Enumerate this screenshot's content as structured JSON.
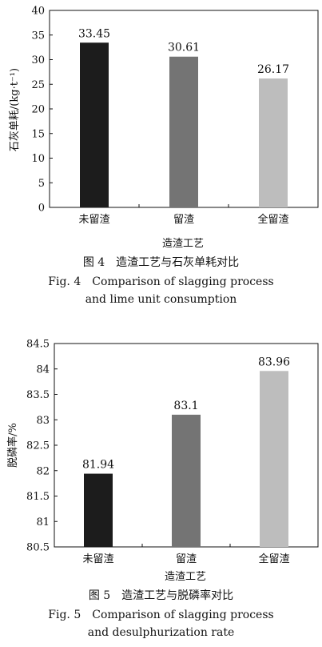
{
  "chart_data": [
    {
      "type": "bar",
      "categories": [
        "未留渣",
        "留渣",
        "全留渣"
      ],
      "values": [
        33.45,
        30.61,
        26.17
      ],
      "data_labels": [
        "33.45",
        "30.61",
        "26.17"
      ],
      "colors": [
        "#1c1c1c",
        "#747474",
        "#bdbdbd"
      ],
      "ylim": [
        0,
        40
      ],
      "yticks": [
        "0",
        "5",
        "10",
        "15",
        "20",
        "25",
        "30",
        "35",
        "40"
      ],
      "xlabel": "造渣工艺",
      "ylabel": "石灰单耗/(kg·t⁻¹)",
      "caption_cn": "图 4　造渣工艺与石灰单耗对比",
      "caption_en_1": "Fig. 4　Comparison of slagging process",
      "caption_en_2": "and lime unit consumption"
    },
    {
      "type": "bar",
      "categories": [
        "未留渣",
        "留渣",
        "全留渣"
      ],
      "values": [
        81.94,
        83.1,
        83.96
      ],
      "data_labels": [
        "81.94",
        "83.1",
        "83.96"
      ],
      "colors": [
        "#1c1c1c",
        "#747474",
        "#bdbdbd"
      ],
      "ylim": [
        80.5,
        84.5
      ],
      "yticks": [
        "80.5",
        "81",
        "81.5",
        "82",
        "82.5",
        "83",
        "83.5",
        "84",
        "84.5"
      ],
      "xlabel": "造渣工艺",
      "ylabel": "脱磷率/%",
      "caption_cn": "图 5　造渣工艺与脱磷率对比",
      "caption_en_1": "Fig. 5　Comparison of slagging process",
      "caption_en_2": "and desulphurization rate"
    }
  ]
}
